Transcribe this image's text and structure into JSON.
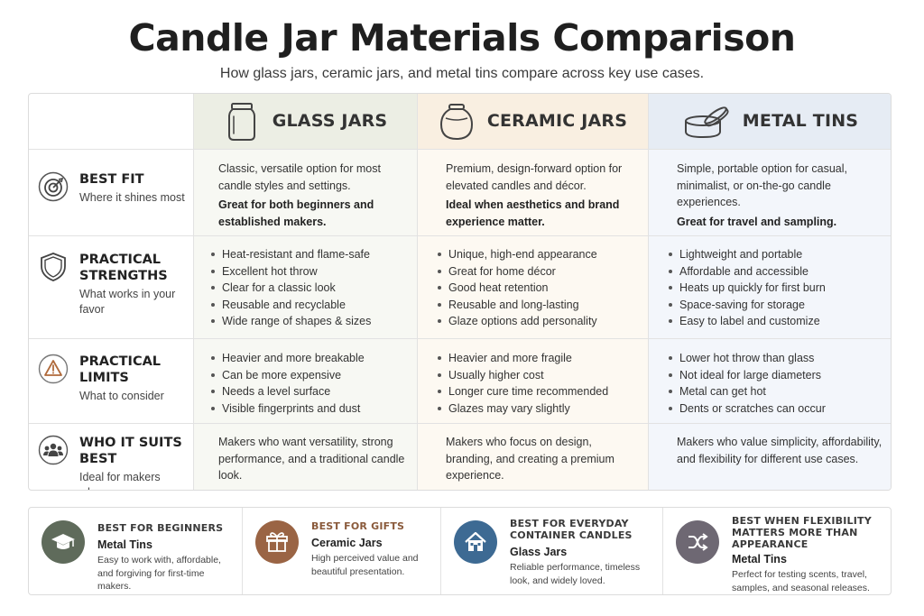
{
  "title": "Candle Jar Materials Comparison",
  "subtitle": "How glass jars, ceramic jars, and metal tins compare across key use cases.",
  "columns": [
    {
      "label": "GLASS JARS",
      "icon": "glass-jar-icon"
    },
    {
      "label": "CERAMIC JARS",
      "icon": "ceramic-jar-icon"
    },
    {
      "label": "METAL TINS",
      "icon": "metal-tin-icon"
    }
  ],
  "rows": {
    "best_fit": {
      "title": "BEST FIT",
      "subtitle": "Where it shines most",
      "icon": "target-icon",
      "glass": {
        "text": "Classic, versatile option for most candle styles and settings.",
        "strong": "Great for both beginners and established makers."
      },
      "ceramic": {
        "text": "Premium, design-forward option for elevated candles and décor.",
        "strong": "Ideal when aesthetics and brand experience matter."
      },
      "metal": {
        "text": "Simple, portable option for casual, minimalist, or on-the-go candle experiences.",
        "strong": "Great for travel and sampling."
      }
    },
    "strengths": {
      "title": "PRACTICAL STRENGTHS",
      "subtitle": "What works in your favor",
      "icon": "shield-icon",
      "glass": [
        "Heat-resistant and flame-safe",
        "Excellent hot throw",
        "Clear for a classic look",
        "Reusable and recyclable",
        "Wide range of shapes & sizes"
      ],
      "ceramic": [
        "Unique, high-end appearance",
        "Great for home décor",
        "Good heat retention",
        "Reusable and long-lasting",
        "Glaze options add personality"
      ],
      "metal": [
        "Lightweight and portable",
        "Affordable and accessible",
        "Heats up quickly for first burn",
        "Space-saving for storage",
        "Easy to label and customize"
      ]
    },
    "limits": {
      "title": "PRACTICAL LIMITS",
      "subtitle": "What to consider",
      "icon": "warning-icon",
      "glass": [
        "Heavier and more breakable",
        "Can be more expensive",
        "Needs a level surface",
        "Visible fingerprints and dust"
      ],
      "ceramic": [
        "Heavier and more fragile",
        "Usually higher cost",
        "Longer cure time recommended",
        "Glazes may vary slightly"
      ],
      "metal": [
        "Lower hot throw than glass",
        "Not ideal for large diameters",
        "Metal can get hot",
        "Dents or scratches can occur"
      ]
    },
    "suits": {
      "title": "WHO IT SUITS BEST",
      "subtitle": "Ideal for makers who...",
      "icon": "people-icon",
      "glass": "Makers who want versatility, strong performance, and a traditional candle look.",
      "ceramic": "Makers who focus on design, branding, and creating a premium experience.",
      "metal": "Makers who value simplicity, affordability, and flexibility for different use cases."
    }
  },
  "cards": [
    {
      "tag": "BEST FOR BEGINNERS",
      "name": "Metal Tins",
      "desc": "Easy to work with, affordable, and forgiving for first-time makers.",
      "icon": "graduation-cap-icon",
      "color": "#5f6b5b"
    },
    {
      "tag": "BEST FOR GIFTS",
      "name": "Ceramic Jars",
      "desc": "High perceived value and beautiful presentation.",
      "icon": "gift-icon",
      "color": "#9a6444"
    },
    {
      "tag": "BEST FOR EVERYDAY CONTAINER CANDLES",
      "name": "Glass Jars",
      "desc": "Reliable performance, timeless look, and widely loved.",
      "icon": "house-icon",
      "color": "#3d6a93"
    },
    {
      "tag": "BEST WHEN FLEXIBILITY MATTERS MORE THAN APPEARANCE",
      "name": "Metal Tins",
      "desc": "Perfect for testing scents, travel, samples, and seasonal releases.",
      "icon": "shuffle-icon",
      "color": "#6e6873"
    }
  ]
}
